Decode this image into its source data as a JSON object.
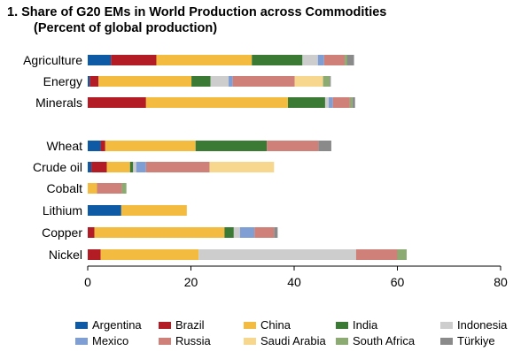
{
  "title": "1. Share of G20 EMs in World Production across Commodities",
  "subtitle": "(Percent of global production)",
  "chart_data": {
    "type": "bar",
    "orientation": "horizontal",
    "stacked": true,
    "xlim": [
      0,
      80
    ],
    "xticks": [
      0,
      20,
      40,
      60,
      80
    ],
    "grid": false,
    "legend_position": "bottom",
    "categories": [
      "Agriculture",
      "Energy",
      "Minerals",
      "Wheat",
      "Crude oil",
      "Cobalt",
      "Lithium",
      "Copper",
      "Nickel"
    ],
    "series": [
      {
        "name": "Argentina",
        "color": "#0f5aa5",
        "values": [
          4.5,
          0.4,
          0.0,
          2.5,
          0.7,
          0.0,
          6.5,
          0.0,
          0.0
        ]
      },
      {
        "name": "Brazil",
        "color": "#b31b25",
        "values": [
          8.8,
          1.7,
          11.3,
          0.9,
          3.0,
          0.0,
          0.0,
          1.3,
          2.5
        ]
      },
      {
        "name": "China",
        "color": "#f4bb41",
        "values": [
          18.5,
          18.0,
          27.5,
          17.5,
          4.5,
          1.8,
          12.7,
          25.2,
          19.0
        ]
      },
      {
        "name": "India",
        "color": "#3b7a34",
        "values": [
          9.8,
          3.7,
          7.2,
          13.8,
          0.6,
          0.0,
          0.0,
          1.8,
          0.0
        ]
      },
      {
        "name": "Indonesia",
        "color": "#cdcdcd",
        "values": [
          3.0,
          3.5,
          0.7,
          0.0,
          0.6,
          0.0,
          0.0,
          1.2,
          30.5
        ]
      },
      {
        "name": "Mexico",
        "color": "#7f9fd4",
        "values": [
          1.2,
          0.8,
          0.8,
          0.0,
          1.9,
          0.0,
          0.0,
          2.8,
          0.0
        ]
      },
      {
        "name": "Russia",
        "color": "#cf8179",
        "values": [
          4.0,
          12.0,
          3.3,
          10.0,
          12.3,
          4.8,
          0.0,
          3.8,
          8.0
        ]
      },
      {
        "name": "Saudi Arabia",
        "color": "#f7d68e",
        "values": [
          0.0,
          5.5,
          0.0,
          0.0,
          12.5,
          0.0,
          0.0,
          0.0,
          0.0
        ]
      },
      {
        "name": "South Africa",
        "color": "#8bab72",
        "values": [
          0.5,
          1.3,
          0.5,
          0.0,
          0.0,
          0.9,
          0.0,
          0.0,
          1.8
        ]
      },
      {
        "name": "Türkiye",
        "color": "#8a8a8a",
        "values": [
          1.3,
          0.2,
          0.5,
          2.5,
          0.0,
          0.0,
          0.0,
          0.7,
          0.0
        ]
      }
    ]
  }
}
